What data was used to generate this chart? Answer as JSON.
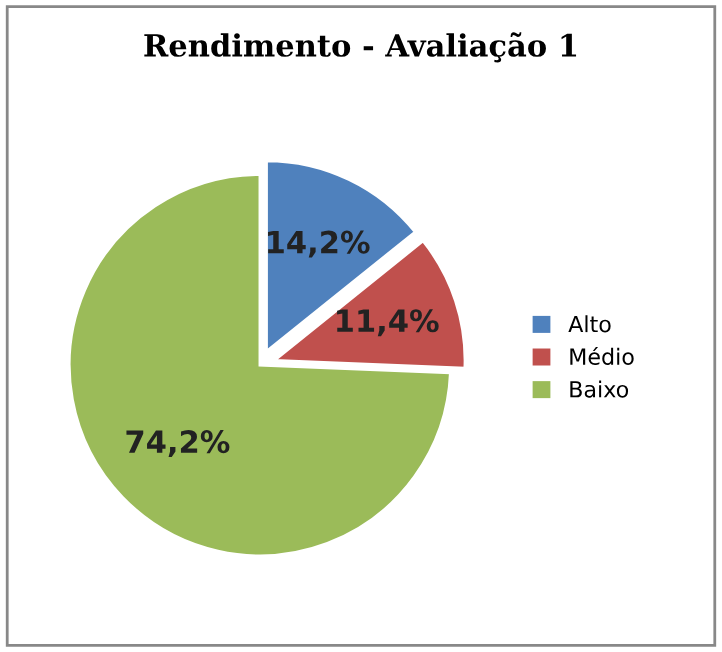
{
  "chart_data": {
    "type": "pie",
    "title": "Rendimento - Avaliação 1",
    "categories": [
      "Alto",
      "Médio",
      "Baixo"
    ],
    "values": [
      14.2,
      11.4,
      74.2
    ],
    "value_labels": [
      "14,2%",
      "11,4%",
      "74,2%"
    ],
    "colors": [
      "#4f81bd",
      "#c0504d",
      "#9bbb59"
    ],
    "legend": "right"
  }
}
